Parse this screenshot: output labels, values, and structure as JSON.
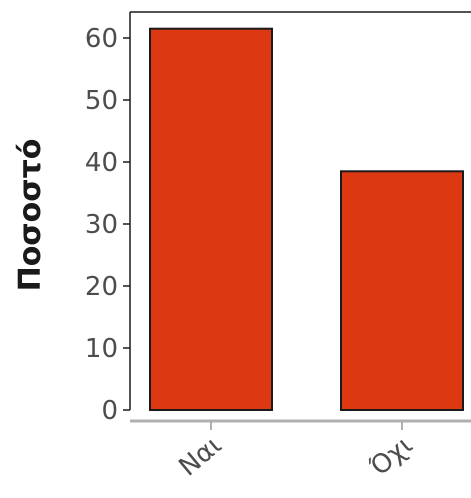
{
  "chart_data": {
    "type": "bar",
    "categories": [
      "Ναι",
      "Όχι"
    ],
    "values": [
      61.5,
      38.5
    ],
    "title": "",
    "xlabel": "",
    "ylabel": "Ποσοστό",
    "ylim": [
      0,
      64
    ],
    "yticks": [
      0,
      10,
      20,
      30,
      40,
      50,
      60
    ],
    "grid": false,
    "bar_color": "#dc3912",
    "bar_edge_color": "#1a1a1a"
  }
}
